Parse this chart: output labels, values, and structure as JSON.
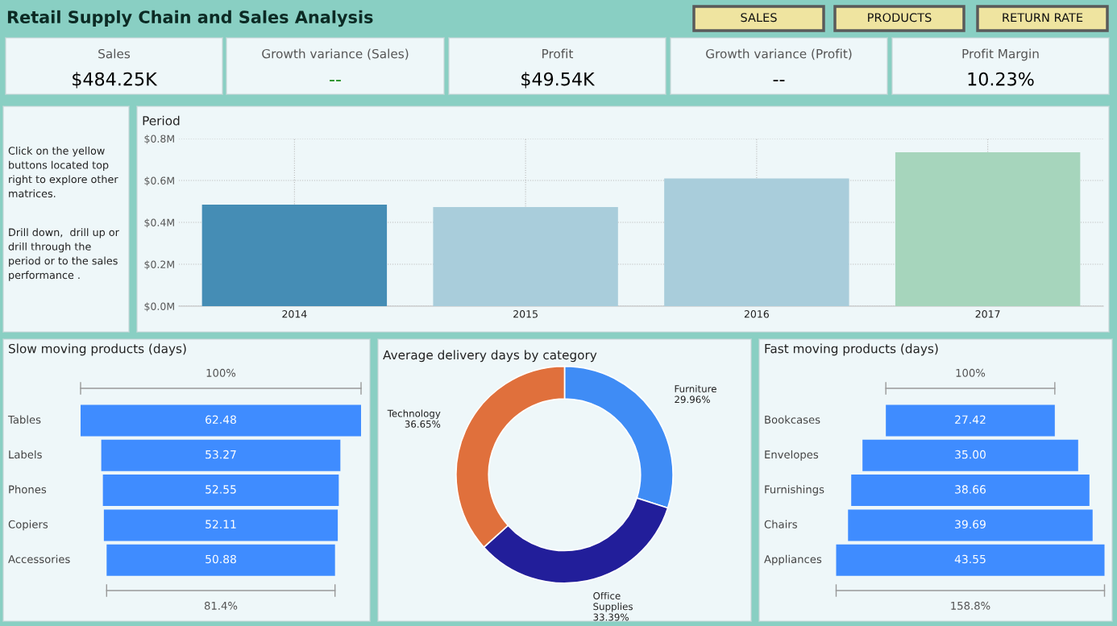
{
  "chart_data": [
    {
      "type": "other",
      "title": "Retail Supply Chain and Sales Analysis",
      "annotations": [
        "SALES",
        "PRODUCTS",
        "RETURN RATE"
      ]
    },
    {
      "type": "other",
      "title": "Sales",
      "annotations": [
        "$484.25K"
      ],
      "color": "#000000"
    },
    {
      "type": "other",
      "title": "Growth variance (Sales)",
      "annotations": [
        "--"
      ],
      "color": "#1a8a1a"
    },
    {
      "type": "other",
      "title": "Profit",
      "annotations": [
        "$49.54K"
      ],
      "color": "#000000"
    },
    {
      "type": "other",
      "title": "Growth variance (Profit)",
      "annotations": [
        "--"
      ],
      "color": "#000000"
    },
    {
      "type": "other",
      "title": "Profit Margin",
      "annotations": [
        "10.23%"
      ],
      "color": "#000000"
    },
    {
      "type": "other",
      "annotations": [
        "Click on the yellow\nbuttons located top\nright to explore other\nmatrices.",
        "Drill down,  drill up or\ndrill through the\nperiod or to the sales\nperformance ."
      ]
    },
    {
      "type": "bar",
      "title": "Period",
      "categories": [
        "2014",
        "2015",
        "2016",
        "2017"
      ],
      "values": [
        0.485,
        0.473,
        0.61,
        0.735
      ],
      "colors": [
        "#458db5",
        "#a9cddb",
        "#a9cddb",
        "#a6d5bc"
      ],
      "ylim": [
        0,
        0.8
      ],
      "yticks": [
        {
          "value": 0,
          "label": "$0.0M"
        },
        {
          "value": 0.2,
          "label": "$0.2M"
        },
        {
          "value": 0.4,
          "label": "$0.4M"
        },
        {
          "value": 0.6,
          "label": "$0.6M"
        },
        {
          "value": 0.8,
          "label": "$0.8M"
        }
      ],
      "grid": true
    },
    {
      "type": "other",
      "title": "Slow moving products (days)",
      "categories": [
        "Tables",
        "Labels",
        "Phones",
        "Copiers",
        "Accessories"
      ],
      "values": [
        62.48,
        53.27,
        52.55,
        52.11,
        50.88
      ],
      "value_labels": [
        "62.48",
        "53.27",
        "52.55",
        "52.11",
        "50.88"
      ],
      "color": "#3f8cff",
      "annotations": [
        "100%",
        "81.4%"
      ]
    },
    {
      "type": "donut",
      "title": "Average delivery days by category",
      "categories": [
        "Furniture",
        "Office\nSupplies",
        "Technology"
      ],
      "values": [
        29.96,
        33.39,
        36.65
      ],
      "value_labels": [
        "29.96%",
        "33.39%",
        "36.65%"
      ],
      "colors": [
        "#3f8cf5",
        "#221e9a",
        "#e0703c"
      ]
    },
    {
      "type": "other",
      "title": "Fast moving products (days)",
      "categories": [
        "Bookcases",
        "Envelopes",
        "Furnishings",
        "Chairs",
        "Appliances"
      ],
      "values": [
        27.42,
        35.0,
        38.66,
        39.69,
        43.55
      ],
      "value_labels": [
        "27.42",
        "35.00",
        "38.66",
        "39.69",
        "43.55"
      ],
      "color": "#3f8cff",
      "annotations": [
        "100%",
        "158.8%"
      ]
    }
  ]
}
